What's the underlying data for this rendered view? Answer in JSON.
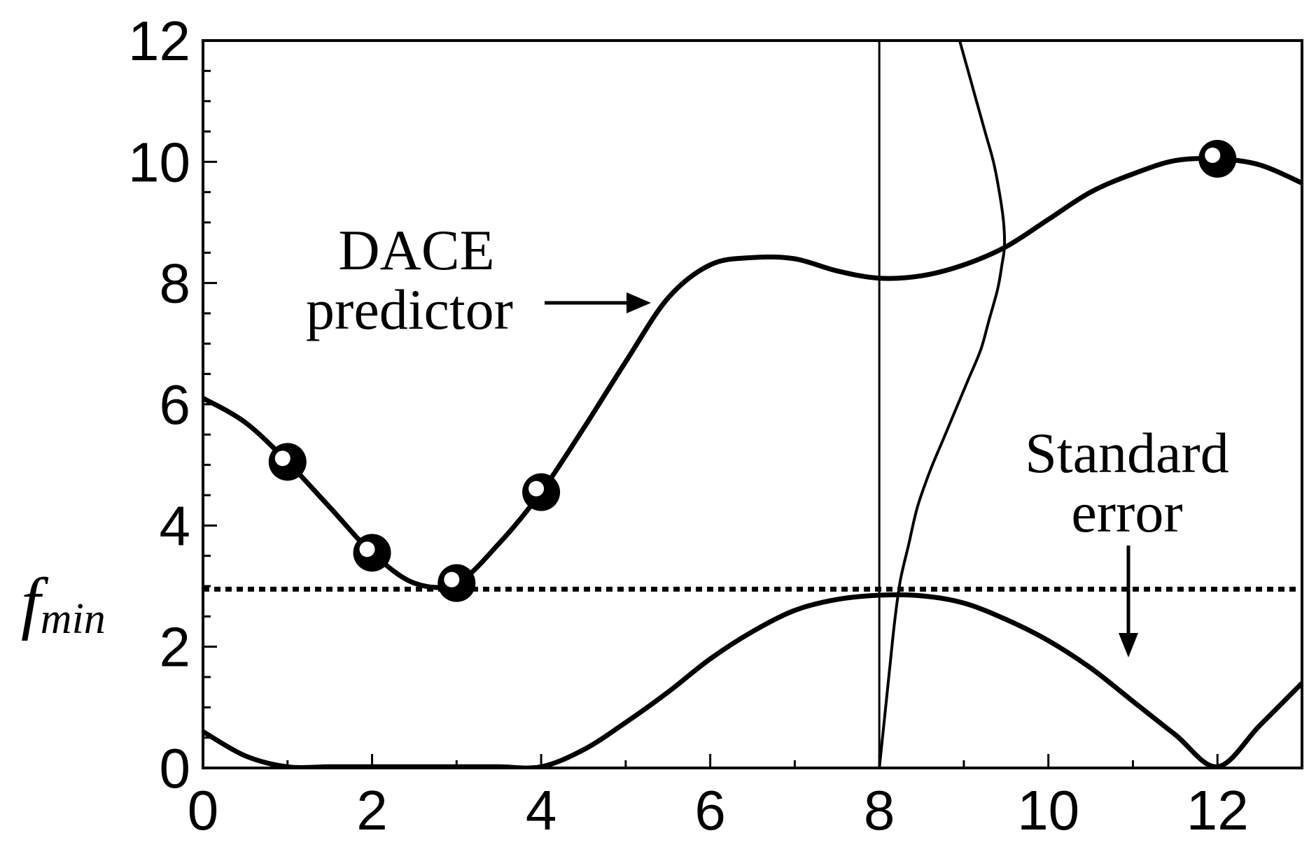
{
  "chart_data": {
    "type": "line",
    "title": "",
    "xlabel": "",
    "ylabel": "",
    "xlim": [
      0,
      13
    ],
    "ylim": [
      0,
      12
    ],
    "x_ticks": [
      "0",
      "2",
      "4",
      "6",
      "8",
      "10",
      "12"
    ],
    "y_ticks": [
      "0",
      "2",
      "4",
      "6",
      "8",
      "10",
      "12"
    ],
    "grid": false,
    "series": [
      {
        "name": "DACE predictor",
        "x": [
          0,
          0.5,
          1,
          1.5,
          2,
          2.5,
          3,
          3.5,
          4,
          4.5,
          5,
          5.5,
          6,
          6.5,
          7,
          7.5,
          8,
          8.5,
          9,
          9.5,
          10,
          10.5,
          11,
          11.5,
          12,
          12.5,
          13
        ],
        "y": [
          6.1,
          5.7,
          5.05,
          4.3,
          3.55,
          3.05,
          3.05,
          3.7,
          4.55,
          5.6,
          6.7,
          7.75,
          8.3,
          8.42,
          8.4,
          8.2,
          8.08,
          8.12,
          8.3,
          8.6,
          9.05,
          9.5,
          9.8,
          10.02,
          10.05,
          9.95,
          9.65
        ]
      },
      {
        "name": "Standard error",
        "x": [
          0,
          0.5,
          1,
          1.5,
          2,
          2.5,
          3,
          3.5,
          4,
          4.5,
          5,
          5.5,
          6,
          6.5,
          7,
          7.5,
          8,
          8.5,
          9,
          9.5,
          10,
          10.5,
          11,
          11.5,
          12,
          12.5,
          13
        ],
        "y": [
          0.6,
          0.2,
          0.02,
          0.02,
          0.02,
          0.02,
          0.02,
          0.02,
          0.02,
          0.3,
          0.75,
          1.25,
          1.8,
          2.25,
          2.6,
          2.78,
          2.85,
          2.84,
          2.72,
          2.45,
          2.1,
          1.65,
          1.1,
          0.55,
          0.02,
          0.7,
          1.4
        ]
      },
      {
        "x": [
          8.0,
          8.06,
          8.12,
          8.18,
          8.25,
          8.35,
          8.45,
          8.6,
          8.75,
          8.9,
          9.05,
          9.2,
          9.3,
          9.4,
          9.45,
          9.48,
          9.47,
          9.42,
          9.35,
          9.25,
          9.15,
          9.05,
          8.95
        ],
        "y": [
          0.0,
          0.8,
          1.6,
          2.4,
          3.1,
          3.7,
          4.3,
          4.9,
          5.4,
          5.9,
          6.4,
          6.9,
          7.4,
          7.9,
          8.3,
          8.6,
          9.0,
          9.5,
          10.0,
          10.5,
          11.0,
          11.5,
          12.0
        ]
      }
    ],
    "observations": {
      "x": [
        1,
        2,
        3,
        4,
        12
      ],
      "y": [
        5.05,
        3.55,
        3.05,
        4.55,
        10.05
      ]
    },
    "reference_lines": {
      "fmin_y": 2.95,
      "vertical_x": 8
    },
    "annotations": {
      "dace_line1": "DACE",
      "dace_line2": "predictor",
      "se_line1": "Standard",
      "se_line2": "error",
      "fmin_main": "f",
      "fmin_sub": "min"
    }
  }
}
